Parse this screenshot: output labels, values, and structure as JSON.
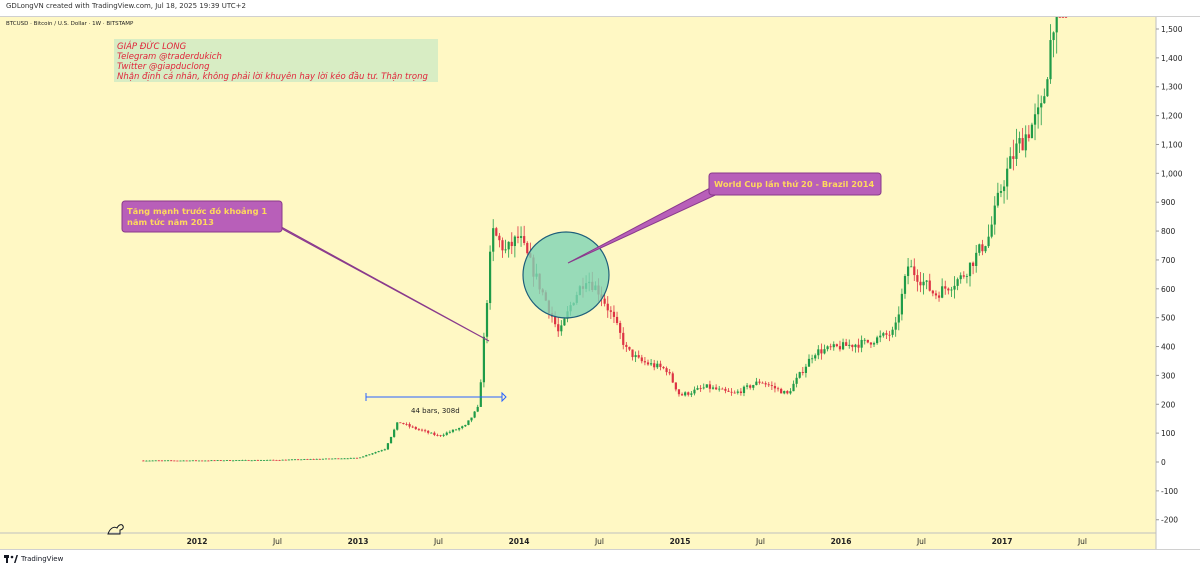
{
  "header": {
    "attribution": "GDLongVN created with TradingView.com, Jul 18, 2025 19:39 UTC+2"
  },
  "symbol_line": "BTCUSD · Bitcoin / U.S. Dollar · 1W · BITSTAMP",
  "author_note": {
    "lines": [
      "GIÁP ĐỨC LONG",
      "Telegram @traderdukich",
      "Twitter @giapduclong",
      "Nhận định cá nhân, không phải lời khuyên hay lời kéo đầu tư. Thận trọng"
    ]
  },
  "callouts": {
    "left": {
      "lines": [
        "Tăng mạnh trước đó khoảng 1",
        "năm tức năm 2013"
      ]
    },
    "right": {
      "lines": [
        "World Cup lần thứ 20 - Brazil 2014"
      ]
    }
  },
  "measure": {
    "label": "44 bars, 308d"
  },
  "footer": {
    "brand": "TradingView"
  },
  "colors": {
    "background": "#fff8c4",
    "up": "#1f9b48",
    "down": "#dd3344",
    "note_bg": "#d4ebc4",
    "callout_bg": "#b85fb9",
    "callout_text": "#ffd95c",
    "circle_fill": "#7ed3b5"
  },
  "chart_data": {
    "type": "candlestick",
    "title": "",
    "xlabel": "",
    "ylabel": "",
    "x_tick_labels": [
      "2012",
      "Jul",
      "2013",
      "Jul",
      "2014",
      "Jul",
      "2015",
      "Jul",
      "2016",
      "Jul",
      "2017",
      "Jul"
    ],
    "y_tick_labels": [
      "1,500",
      "1,400",
      "1,300",
      "1,200",
      "1,100",
      "1,000",
      "900",
      "800",
      "700",
      "600",
      "500",
      "400",
      "300",
      "200",
      "100",
      "0",
      "-100",
      "-200"
    ],
    "ylim": [
      -250,
      1550
    ],
    "x_range": [
      "2011-09",
      "2017-12"
    ],
    "grid": false,
    "series": [
      {
        "values": [
          {
            "date": "2011-09",
            "close": 5
          },
          {
            "date": "2012-01",
            "close": 5
          },
          {
            "date": "2012-07",
            "close": 7
          },
          {
            "date": "2013-01",
            "close": 14
          },
          {
            "date": "2013-03",
            "close": 45
          },
          {
            "date": "2013-04",
            "close": 140
          },
          {
            "date": "2013-05",
            "close": 120
          },
          {
            "date": "2013-07",
            "close": 90
          },
          {
            "date": "2013-09",
            "close": 125
          },
          {
            "date": "2013-10",
            "close": 190
          },
          {
            "date": "2013-11",
            "close": 800
          },
          {
            "date": "2013-12",
            "close": 730
          },
          {
            "date": "2014-01",
            "close": 780
          },
          {
            "date": "2014-03",
            "close": 560
          },
          {
            "date": "2014-04",
            "close": 440
          },
          {
            "date": "2014-05",
            "close": 560
          },
          {
            "date": "2014-06",
            "close": 640
          },
          {
            "date": "2014-07",
            "close": 590
          },
          {
            "date": "2014-08",
            "close": 500
          },
          {
            "date": "2014-09",
            "close": 390
          },
          {
            "date": "2014-10",
            "close": 350
          },
          {
            "date": "2014-12",
            "close": 320
          },
          {
            "date": "2015-01",
            "close": 230
          },
          {
            "date": "2015-03",
            "close": 260
          },
          {
            "date": "2015-05",
            "close": 235
          },
          {
            "date": "2015-07",
            "close": 280
          },
          {
            "date": "2015-09",
            "close": 235
          },
          {
            "date": "2015-11",
            "close": 380
          },
          {
            "date": "2016-01",
            "close": 400
          },
          {
            "date": "2016-03",
            "close": 415
          },
          {
            "date": "2016-05",
            "close": 450
          },
          {
            "date": "2016-06",
            "close": 680
          },
          {
            "date": "2016-08",
            "close": 580
          },
          {
            "date": "2016-10",
            "close": 640
          },
          {
            "date": "2016-12",
            "close": 780
          },
          {
            "date": "2017-01",
            "close": 960
          },
          {
            "date": "2017-02",
            "close": 1080
          },
          {
            "date": "2017-03",
            "close": 1150
          },
          {
            "date": "2017-04",
            "close": 1220
          },
          {
            "date": "2017-05",
            "close": 1600
          }
        ]
      }
    ]
  }
}
